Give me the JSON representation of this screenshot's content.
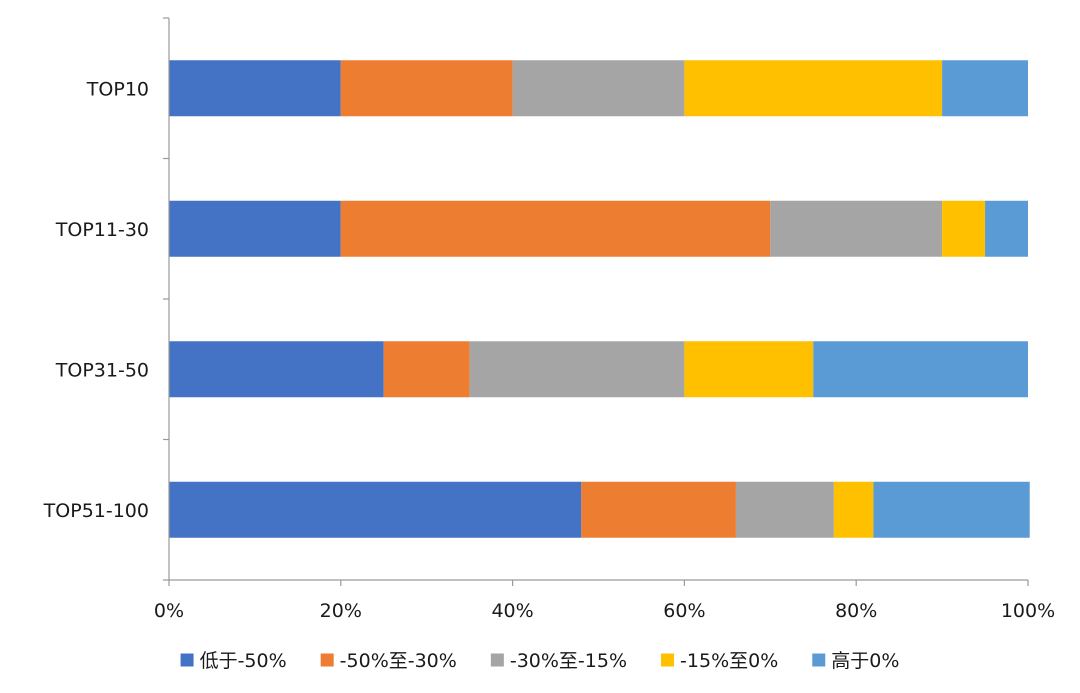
{
  "chart_data": {
    "type": "bar",
    "orientation": "horizontal",
    "stacked": "percent",
    "categories": [
      "TOP10",
      "TOP11-30",
      "TOP31-50",
      "TOP51-100"
    ],
    "series": [
      {
        "name": "低于-50%",
        "values": [
          20,
          20,
          25,
          48
        ],
        "color": "#4472C4"
      },
      {
        "name": "-50%至-30%",
        "values": [
          20,
          50,
          10,
          18
        ],
        "color": "#ED7D31"
      },
      {
        "name": "-30%至-15%",
        "values": [
          20,
          20,
          25,
          11.4
        ],
        "color": "#A5A5A5"
      },
      {
        "name": "-15%至0%",
        "values": [
          30,
          5,
          15,
          4.6
        ],
        "color": "#FFC000"
      },
      {
        "name": "高于0%",
        "values": [
          10,
          5,
          25,
          18.2
        ],
        "color": "#5B9BD5"
      }
    ],
    "xticks": [
      "0%",
      "20%",
      "40%",
      "60%",
      "80%",
      "100%"
    ],
    "xlim": [
      0,
      100
    ],
    "title": "",
    "xlabel": "",
    "ylabel": "",
    "grid": false,
    "legend": "bottom"
  }
}
